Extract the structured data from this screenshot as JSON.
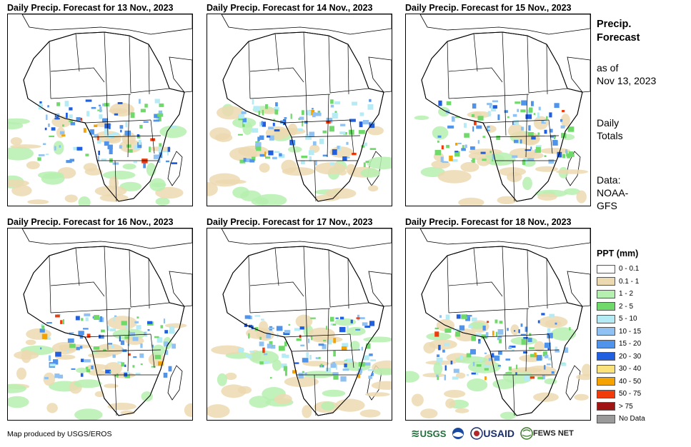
{
  "panels": [
    {
      "title": "Daily Precip. Forecast for 13 Nov., 2023"
    },
    {
      "title": "Daily Precip. Forecast for 14 Nov., 2023"
    },
    {
      "title": "Daily Precip. Forecast for 15 Nov., 2023"
    },
    {
      "title": "Daily Precip. Forecast for 16 Nov., 2023"
    },
    {
      "title": "Daily Precip. Forecast for 17 Nov., 2023"
    },
    {
      "title": "Daily Precip. Forecast for 18 Nov., 2023"
    }
  ],
  "side": {
    "title_line1": "Precip.",
    "title_line2": "Forecast",
    "asof_line1": "as of",
    "asof_line2": "Nov 13, 2023",
    "totals_line1": "Daily",
    "totals_line2": "Totals",
    "data_line1": "Data:",
    "data_line2": "NOAA-",
    "data_line3": "GFS"
  },
  "legend": {
    "title": "PPT (mm)",
    "items": [
      {
        "label": "0 - 0.1",
        "color": "#ffffff"
      },
      {
        "label": "0.1 - 1",
        "color": "#ecd9b0"
      },
      {
        "label": "1 - 2",
        "color": "#b6f0b0"
      },
      {
        "label": "2 - 5",
        "color": "#6fd96a"
      },
      {
        "label": "5 - 10",
        "color": "#b5ebf5"
      },
      {
        "label": "10 - 15",
        "color": "#8fc2f2"
      },
      {
        "label": "15 - 20",
        "color": "#4f94ea"
      },
      {
        "label": "20 - 30",
        "color": "#1f5fe0"
      },
      {
        "label": "30 - 40",
        "color": "#fbe27a"
      },
      {
        "label": "40 - 50",
        "color": "#f5a300"
      },
      {
        "label": "50 - 75",
        "color": "#f13b0b"
      },
      {
        "label": "> 75",
        "color": "#a01414"
      },
      {
        "label": "No Data",
        "color": "#9a9a9a"
      }
    ]
  },
  "credit": "Map produced by USGS/EROS",
  "logos": {
    "usgs": "USGS",
    "usaid": "USAID",
    "fews": "FEWS NET"
  }
}
